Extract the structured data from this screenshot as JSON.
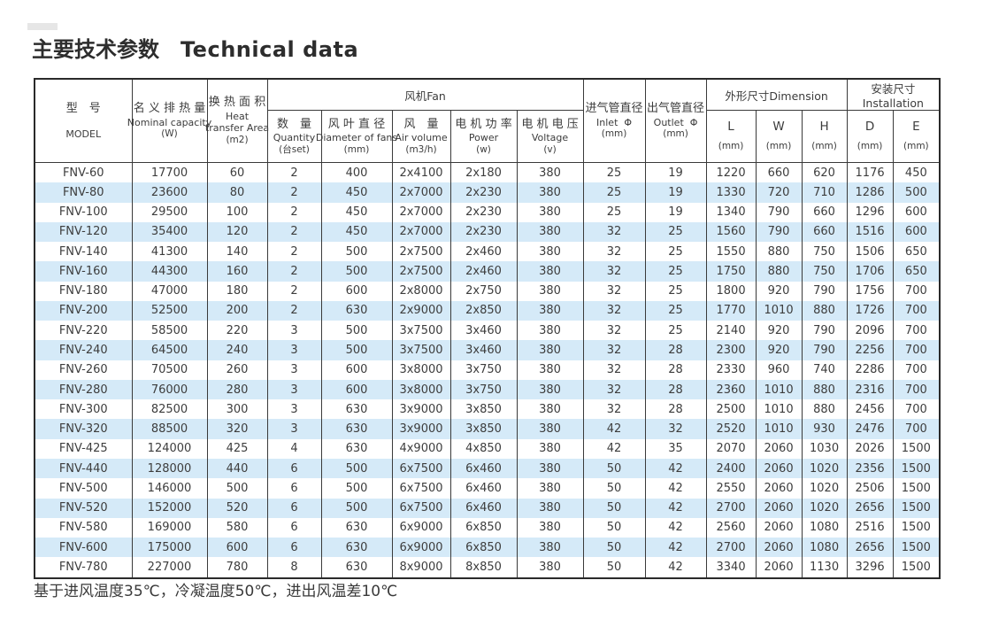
{
  "colors": {
    "stripe": "#d5eaf8",
    "border": "#3a3a3a",
    "text": "#3d3d3d"
  },
  "page": {
    "title_zh": "主要技术参数",
    "title_en": "Technical data",
    "footnote": "基于进风温度35℃，冷凝温度50℃，进出风温差10℃"
  },
  "table": {
    "header": {
      "groups": {
        "fan": "风机Fan",
        "dimension": "外形尺寸Dimension",
        "installation": "安装尺寸Installation"
      },
      "model": {
        "zh": "型　号",
        "en": "MODEL"
      },
      "capacity": {
        "zh": "名 义 排 热 量",
        "en": "Nominal capacity",
        "unit": "(W)"
      },
      "area": {
        "zh": "换 热 面 积",
        "en1": "Heat",
        "en2": "transfer Area",
        "unit": "(m2)"
      },
      "quantity": {
        "zh": "数　量",
        "en": "Quantity",
        "unit": "(台set)"
      },
      "diameter": {
        "zh": "风 叶 直 径",
        "en": "Diameter of fans",
        "unit": "(mm)"
      },
      "airvolume": {
        "zh": "风　量",
        "en": "Air volume",
        "unit": "(m3/h)"
      },
      "power": {
        "zh": "电 机 功 率",
        "en": "Power",
        "unit": "(w)"
      },
      "voltage": {
        "zh": "电 机 电 压",
        "en": "Voltage",
        "unit": "(v)"
      },
      "inlet": {
        "zh": "进气管直径",
        "en": "Inlet  Φ",
        "unit": "(mm)"
      },
      "outlet": {
        "zh": "出气管直径",
        "en": "Outlet  Φ",
        "unit": "(mm)"
      },
      "dim_l": {
        "letter": "L",
        "unit": "(mm)"
      },
      "dim_w": {
        "letter": "W",
        "unit": "(mm)"
      },
      "dim_h": {
        "letter": "H",
        "unit": "(mm)"
      },
      "dim_d": {
        "letter": "D",
        "unit": "(mm)"
      },
      "dim_e": {
        "letter": "E",
        "unit": "(mm)"
      }
    },
    "rows": [
      [
        "FNV-60",
        "17700",
        "60",
        "2",
        "400",
        "2x4100",
        "2x180",
        "380",
        "25",
        "19",
        "1220",
        "660",
        "620",
        "1176",
        "450"
      ],
      [
        "FNV-80",
        "23600",
        "80",
        "2",
        "450",
        "2x7000",
        "2x230",
        "380",
        "25",
        "19",
        "1330",
        "720",
        "710",
        "1286",
        "500"
      ],
      [
        "FNV-100",
        "29500",
        "100",
        "2",
        "450",
        "2x7000",
        "2x230",
        "380",
        "25",
        "19",
        "1340",
        "790",
        "660",
        "1296",
        "600"
      ],
      [
        "FNV-120",
        "35400",
        "120",
        "2",
        "450",
        "2x7000",
        "2x230",
        "380",
        "32",
        "25",
        "1560",
        "790",
        "660",
        "1516",
        "600"
      ],
      [
        "FNV-140",
        "41300",
        "140",
        "2",
        "500",
        "2x7500",
        "2x460",
        "380",
        "32",
        "25",
        "1550",
        "880",
        "750",
        "1506",
        "650"
      ],
      [
        "FNV-160",
        "44300",
        "160",
        "2",
        "500",
        "2x7500",
        "2x460",
        "380",
        "32",
        "25",
        "1750",
        "880",
        "750",
        "1706",
        "650"
      ],
      [
        "FNV-180",
        "47000",
        "180",
        "2",
        "600",
        "2x8000",
        "2x750",
        "380",
        "32",
        "25",
        "1800",
        "920",
        "790",
        "1756",
        "700"
      ],
      [
        "FNV-200",
        "52500",
        "200",
        "2",
        "630",
        "2x9000",
        "2x850",
        "380",
        "32",
        "25",
        "1770",
        "1010",
        "880",
        "1726",
        "700"
      ],
      [
        "FNV-220",
        "58500",
        "220",
        "3",
        "500",
        "3x7500",
        "3x460",
        "380",
        "32",
        "25",
        "2140",
        "920",
        "790",
        "2096",
        "700"
      ],
      [
        "FNV-240",
        "64500",
        "240",
        "3",
        "500",
        "3x7500",
        "3x460",
        "380",
        "32",
        "28",
        "2300",
        "920",
        "790",
        "2256",
        "700"
      ],
      [
        "FNV-260",
        "70500",
        "260",
        "3",
        "600",
        "3x8000",
        "3x750",
        "380",
        "32",
        "28",
        "2330",
        "960",
        "740",
        "2286",
        "700"
      ],
      [
        "FNV-280",
        "76000",
        "280",
        "3",
        "600",
        "3x8000",
        "3x750",
        "380",
        "32",
        "28",
        "2360",
        "1010",
        "880",
        "2316",
        "700"
      ],
      [
        "FNV-300",
        "82500",
        "300",
        "3",
        "630",
        "3x9000",
        "3x850",
        "380",
        "32",
        "28",
        "2500",
        "1010",
        "880",
        "2456",
        "700"
      ],
      [
        "FNV-320",
        "88500",
        "320",
        "3",
        "630",
        "3x9000",
        "3x850",
        "380",
        "42",
        "32",
        "2520",
        "1010",
        "930",
        "2476",
        "700"
      ],
      [
        "FNV-425",
        "124000",
        "425",
        "4",
        "630",
        "4x9000",
        "4x850",
        "380",
        "42",
        "35",
        "2070",
        "2060",
        "1030",
        "2026",
        "1500"
      ],
      [
        "FNV-440",
        "128000",
        "440",
        "6",
        "500",
        "6x7500",
        "6x460",
        "380",
        "50",
        "42",
        "2400",
        "2060",
        "1020",
        "2356",
        "1500"
      ],
      [
        "FNV-500",
        "146000",
        "500",
        "6",
        "500",
        "6x7500",
        "6x460",
        "380",
        "50",
        "42",
        "2550",
        "2060",
        "1020",
        "2506",
        "1500"
      ],
      [
        "FNV-520",
        "152000",
        "520",
        "6",
        "500",
        "6x7500",
        "6x460",
        "380",
        "50",
        "42",
        "2700",
        "2060",
        "1020",
        "2656",
        "1500"
      ],
      [
        "FNV-580",
        "169000",
        "580",
        "6",
        "630",
        "6x9000",
        "6x850",
        "380",
        "50",
        "42",
        "2560",
        "2060",
        "1080",
        "2516",
        "1500"
      ],
      [
        "FNV-600",
        "175000",
        "600",
        "6",
        "630",
        "6x9000",
        "6x850",
        "380",
        "50",
        "42",
        "2700",
        "2060",
        "1080",
        "2656",
        "1500"
      ],
      [
        "FNV-780",
        "227000",
        "780",
        "8",
        "630",
        "8x9000",
        "8x850",
        "380",
        "50",
        "42",
        "3340",
        "2060",
        "1130",
        "3296",
        "1500"
      ]
    ]
  }
}
